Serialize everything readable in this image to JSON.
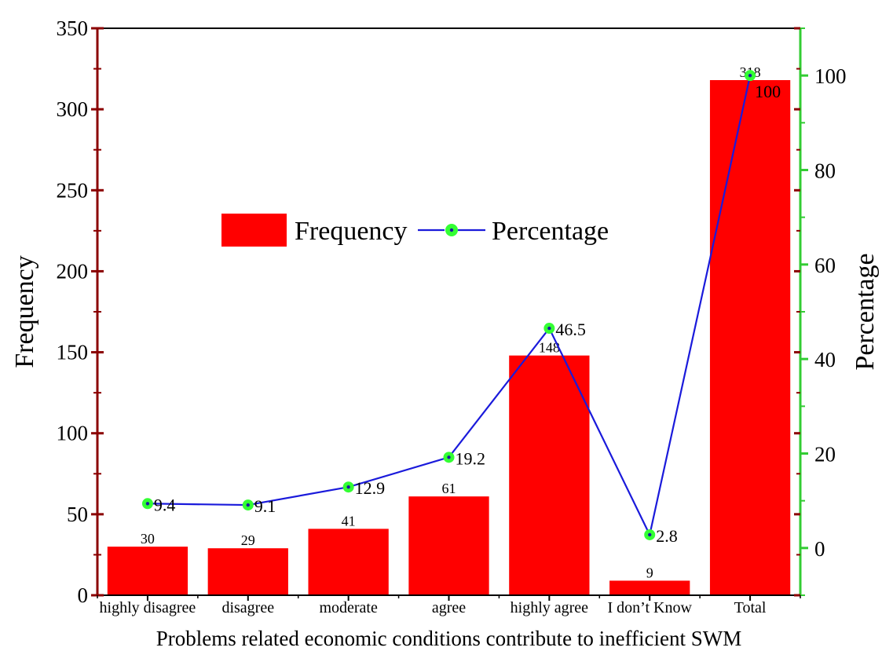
{
  "chart_data": {
    "type": "bar+line",
    "title": "",
    "xlabel": "Problems related economic conditions contribute to inefficient SWM",
    "ylabel": "Frequency",
    "y2label": "Percentage",
    "categories": [
      "highly disagree",
      "disagree",
      "moderate",
      "agree",
      "highly agree",
      "I don’t Know",
      "Total"
    ],
    "series": [
      {
        "name": "Frequency",
        "kind": "bar",
        "axis": "left",
        "values": [
          30,
          29,
          41,
          61,
          148,
          9,
          318
        ],
        "labels": [
          "30",
          "29",
          "41",
          "61",
          "148",
          "9",
          "318"
        ]
      },
      {
        "name": "Percentage",
        "kind": "line",
        "axis": "right",
        "values": [
          9.4,
          9.1,
          12.9,
          19.2,
          46.5,
          2.8,
          100
        ],
        "labels": [
          "9.4",
          "9.1",
          "12.9",
          "19.2",
          "46.5",
          "2.8",
          "100"
        ]
      }
    ],
    "ylim": [
      0,
      350
    ],
    "y_ticks": [
      "0",
      "50",
      "100",
      "150",
      "200",
      "250",
      "300",
      "350"
    ],
    "y2lim": [
      -10,
      110
    ],
    "y2_ticks": [
      "0",
      "20",
      "40",
      "60",
      "80",
      "100"
    ],
    "legend": {
      "position": "center-left",
      "items": [
        "Frequency",
        "Percentage"
      ]
    },
    "colors": {
      "bar": "#ff0000",
      "line": "#1a1adb",
      "marker": "#33ff33",
      "marker_center": "#1a1aa0",
      "left_axis": "#8b0000",
      "right_axis": "#33cc33"
    }
  }
}
